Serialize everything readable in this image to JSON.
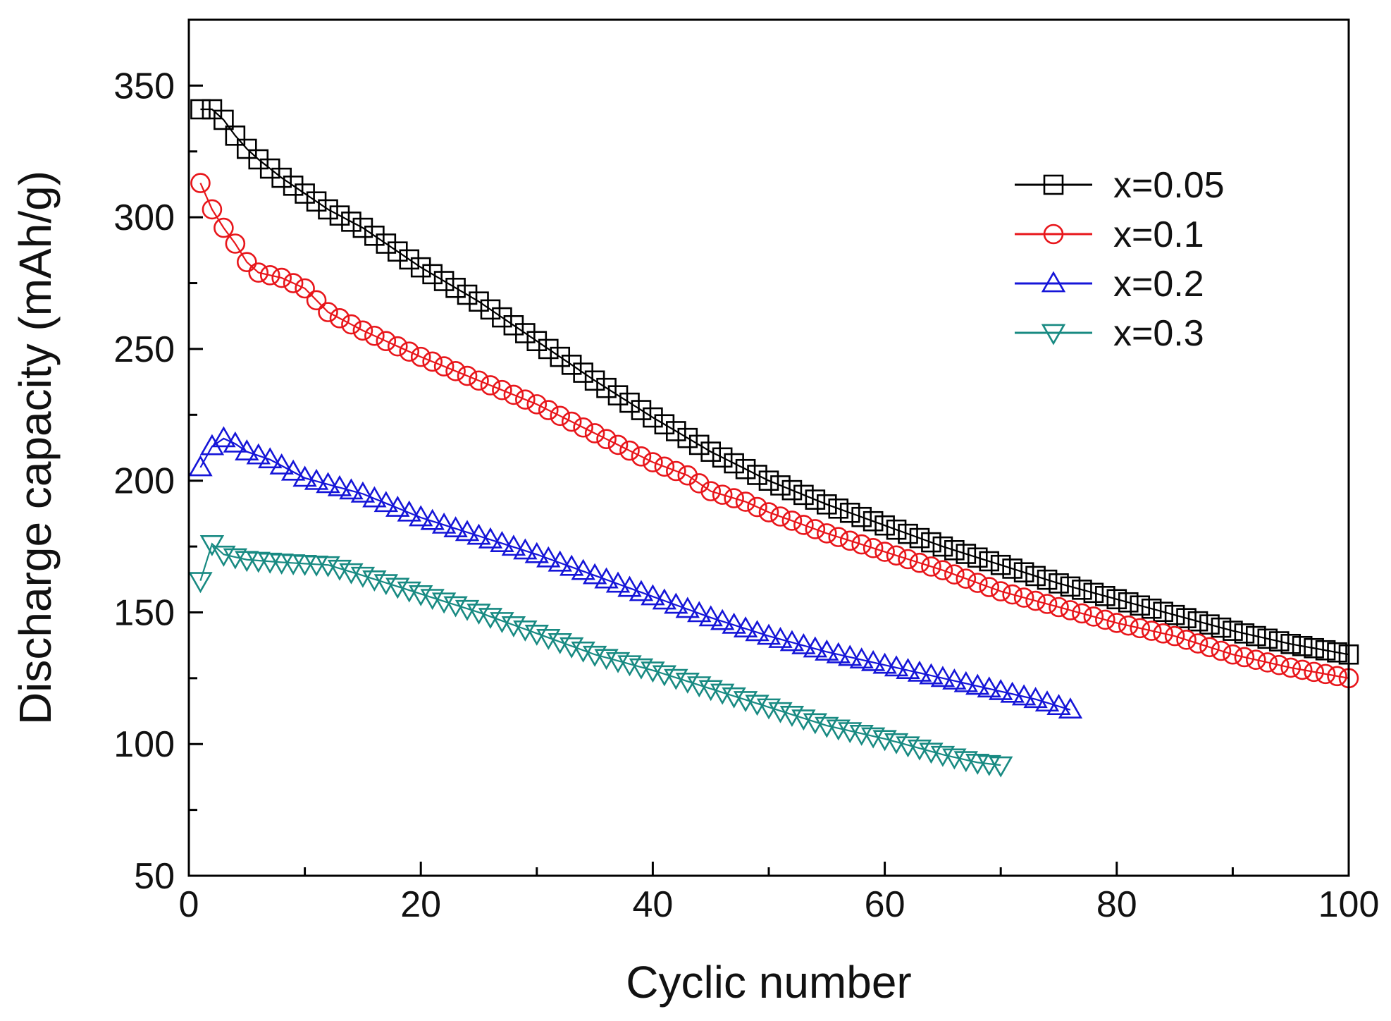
{
  "chart_data": {
    "type": "line",
    "title": "",
    "xlabel": "Cyclic number",
    "ylabel": "Discharge capacity (mAh/g)",
    "xlim": [
      0,
      100
    ],
    "ylim": [
      50,
      375
    ],
    "xticks": [
      0,
      20,
      40,
      60,
      80,
      100
    ],
    "yticks": [
      50,
      100,
      150,
      200,
      250,
      300,
      350
    ],
    "x_tick_labels": [
      "0",
      "20",
      "40",
      "60",
      "80",
      "100"
    ],
    "y_tick_labels": [
      "50",
      "100",
      "150",
      "200",
      "250",
      "300",
      "350"
    ],
    "grid": false,
    "legend_position": "top-right",
    "series": [
      {
        "name": "x=0.05",
        "color": "#000000",
        "marker": "square",
        "anchors": [
          [
            1,
            341
          ],
          [
            2,
            341
          ],
          [
            3,
            337
          ],
          [
            4,
            331
          ],
          [
            5,
            326
          ],
          [
            6,
            322
          ],
          [
            8,
            315
          ],
          [
            10,
            309
          ],
          [
            12,
            303
          ],
          [
            15,
            296
          ],
          [
            18,
            287
          ],
          [
            20,
            281
          ],
          [
            25,
            268
          ],
          [
            30,
            253
          ],
          [
            35,
            238
          ],
          [
            40,
            224
          ],
          [
            45,
            211
          ],
          [
            50,
            200
          ],
          [
            55,
            191
          ],
          [
            60,
            183
          ],
          [
            65,
            175
          ],
          [
            70,
            168
          ],
          [
            75,
            161
          ],
          [
            80,
            155
          ],
          [
            85,
            149
          ],
          [
            90,
            143
          ],
          [
            95,
            138
          ],
          [
            100,
            134
          ]
        ]
      },
      {
        "name": "x=0.1",
        "color": "#e8161b",
        "marker": "circle",
        "anchors": [
          [
            1,
            313
          ],
          [
            2,
            303
          ],
          [
            3,
            296
          ],
          [
            4,
            290
          ],
          [
            5,
            283
          ],
          [
            6,
            279
          ],
          [
            8,
            277
          ],
          [
            10,
            273
          ],
          [
            12,
            264
          ],
          [
            15,
            257
          ],
          [
            18,
            251
          ],
          [
            20,
            247
          ],
          [
            25,
            238
          ],
          [
            30,
            229
          ],
          [
            35,
            218
          ],
          [
            40,
            207
          ],
          [
            43,
            202
          ],
          [
            45,
            196
          ],
          [
            48,
            192
          ],
          [
            50,
            188
          ],
          [
            55,
            180
          ],
          [
            60,
            173
          ],
          [
            65,
            166
          ],
          [
            70,
            158
          ],
          [
            75,
            152
          ],
          [
            80,
            146
          ],
          [
            85,
            141
          ],
          [
            90,
            134
          ],
          [
            95,
            129
          ],
          [
            100,
            125
          ]
        ]
      },
      {
        "name": "x=0.2",
        "color": "#1515d8",
        "marker": "triangle-up",
        "anchors": [
          [
            1,
            205
          ],
          [
            2,
            213
          ],
          [
            3,
            216
          ],
          [
            4,
            214
          ],
          [
            5,
            211
          ],
          [
            7,
            208
          ],
          [
            10,
            201
          ],
          [
            15,
            195
          ],
          [
            20,
            186
          ],
          [
            25,
            179
          ],
          [
            30,
            172
          ],
          [
            35,
            164
          ],
          [
            40,
            156
          ],
          [
            45,
            148
          ],
          [
            50,
            141
          ],
          [
            55,
            135
          ],
          [
            60,
            130
          ],
          [
            65,
            125
          ],
          [
            70,
            120
          ],
          [
            73,
            117
          ],
          [
            76,
            113
          ]
        ]
      },
      {
        "name": "x=0.3",
        "color": "#188a82",
        "marker": "triangle-down",
        "anchors": [
          [
            1,
            162
          ],
          [
            2,
            176
          ],
          [
            3,
            172
          ],
          [
            5,
            170
          ],
          [
            8,
            169
          ],
          [
            12,
            168
          ],
          [
            15,
            164
          ],
          [
            20,
            157
          ],
          [
            25,
            150
          ],
          [
            30,
            142
          ],
          [
            35,
            134
          ],
          [
            40,
            128
          ],
          [
            45,
            121
          ],
          [
            50,
            114
          ],
          [
            55,
            107
          ],
          [
            60,
            102
          ],
          [
            65,
            96
          ],
          [
            68,
            93
          ],
          [
            70,
            92
          ]
        ]
      }
    ]
  }
}
